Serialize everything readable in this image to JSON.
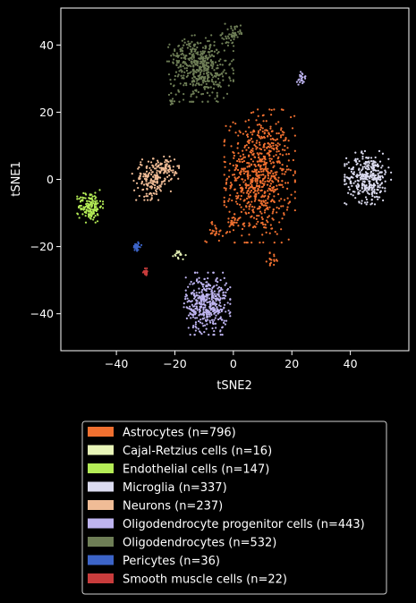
{
  "chart_data": {
    "type": "scatter",
    "title": "",
    "xlabel": "tSNE2",
    "ylabel": "tSNE1",
    "xlim": [
      -59,
      60
    ],
    "ylim": [
      -51,
      51
    ],
    "xticks": [
      -40,
      -20,
      0,
      20,
      40
    ],
    "yticks": [
      -40,
      -20,
      0,
      20,
      40
    ],
    "grid": false,
    "legend_position": "below",
    "background": "#000000",
    "series": [
      {
        "name": "Astrocytes (n=796)",
        "color": "#f07030",
        "n": 796,
        "clusters": [
          {
            "cx": 9,
            "cy": 1,
            "sx": 5.5,
            "sy": 9,
            "w": 0.92
          },
          {
            "cx": -6.5,
            "cy": -15.5,
            "sx": 1.5,
            "sy": 1.5,
            "w": 0.03
          },
          {
            "cx": 13.5,
            "cy": -24,
            "sx": 1,
            "sy": 1,
            "w": 0.02
          },
          {
            "cx": -0.5,
            "cy": -13,
            "sx": 1,
            "sy": 1.2,
            "w": 0.03
          }
        ]
      },
      {
        "name": "Cajal-Retzius cells (n=16)",
        "color": "#e8f5b8",
        "n": 16,
        "clusters": [
          {
            "cx": -18.5,
            "cy": -22.5,
            "sx": 1,
            "sy": 0.8,
            "w": 1
          }
        ]
      },
      {
        "name": "Endothelial cells (n=147)",
        "color": "#b4ec56",
        "n": 147,
        "clusters": [
          {
            "cx": -49,
            "cy": -8,
            "sx": 2,
            "sy": 2.2,
            "w": 1
          }
        ]
      },
      {
        "name": "Microglia (n=337)",
        "color": "#dcdcf0",
        "n": 337,
        "clusters": [
          {
            "cx": 46,
            "cy": 0.5,
            "sx": 3.6,
            "sy": 3.6,
            "w": 1
          }
        ]
      },
      {
        "name": "Neurons (n=237)",
        "color": "#f0bc96",
        "n": 237,
        "clusters": [
          {
            "cx": -28,
            "cy": 0,
            "sx": 3,
            "sy": 2.8,
            "w": 0.7
          },
          {
            "cx": -23,
            "cy": 3.5,
            "sx": 2,
            "sy": 1.5,
            "w": 0.3
          }
        ]
      },
      {
        "name": "Oligodendrocyte progenitor cells (n=443)",
        "color": "#beb4f0",
        "n": 443,
        "clusters": [
          {
            "cx": -9,
            "cy": -37,
            "sx": 3.6,
            "sy": 4.2,
            "w": 0.95
          },
          {
            "cx": 23.5,
            "cy": 30,
            "sx": 0.8,
            "sy": 1.2,
            "w": 0.05
          }
        ]
      },
      {
        "name": "Oligodendrocytes (n=532)",
        "color": "#6e7e56",
        "n": 532,
        "clusters": [
          {
            "cx": -11,
            "cy": 33,
            "sx": 5,
            "sy": 4.5,
            "w": 0.8
          },
          {
            "cx": -17,
            "cy": 37,
            "sx": 3,
            "sy": 2,
            "w": 0.08
          },
          {
            "cx": -0.5,
            "cy": 43,
            "sx": 1.5,
            "sy": 1.5,
            "w": 0.1
          },
          {
            "cx": -21,
            "cy": 23,
            "sx": 0.5,
            "sy": 0.5,
            "w": 0.02
          }
        ]
      },
      {
        "name": "Pericytes (n=36)",
        "color": "#3c64c8",
        "n": 36,
        "clusters": [
          {
            "cx": -33,
            "cy": -20,
            "sx": 0.7,
            "sy": 0.6,
            "w": 1
          }
        ]
      },
      {
        "name": "Smooth muscle cells (n=22)",
        "color": "#c83c3c",
        "n": 22,
        "clusters": [
          {
            "cx": -30,
            "cy": -27.5,
            "sx": 0.4,
            "sy": 0.5,
            "w": 1
          }
        ]
      }
    ]
  }
}
